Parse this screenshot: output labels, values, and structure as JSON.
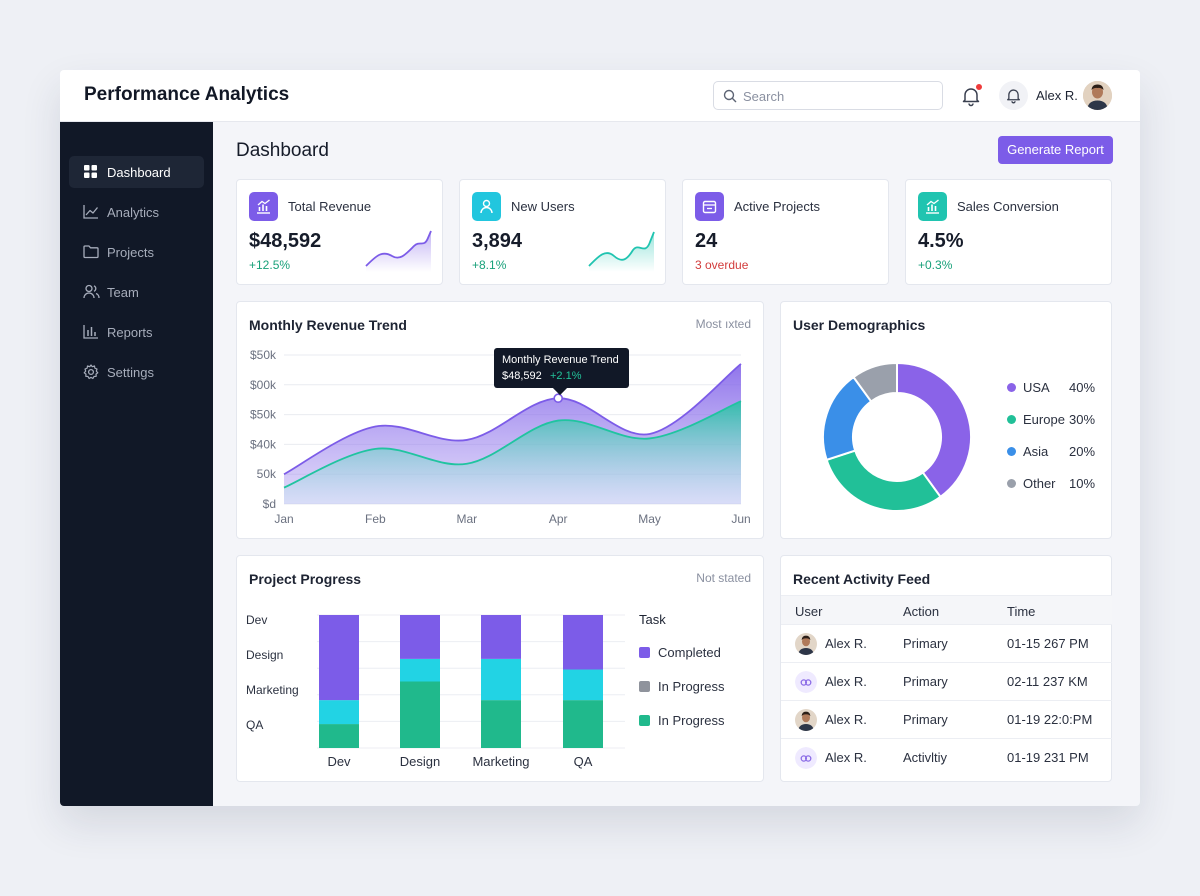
{
  "app": {
    "title": "Performance Analytics"
  },
  "header": {
    "search_placeholder": "Search",
    "user_name": "Alex R."
  },
  "sidebar": {
    "items": [
      {
        "label": "Dashboard",
        "icon": "grid-icon",
        "active": true
      },
      {
        "label": "Analytics",
        "icon": "trend-line-icon",
        "active": false
      },
      {
        "label": "Projects",
        "icon": "folder-icon",
        "active": false
      },
      {
        "label": "Team",
        "icon": "users-icon",
        "active": false
      },
      {
        "label": "Reports",
        "icon": "bar-chart-icon",
        "active": false
      },
      {
        "label": "Settings",
        "icon": "gear-icon",
        "active": false
      }
    ]
  },
  "page": {
    "title": "Dashboard",
    "generate_report_label": "Generate Report"
  },
  "stats": [
    {
      "label": "Total Revenue",
      "value": "$48,592",
      "change": "+12.5%",
      "change_type": "positive",
      "icon": "chart-icon",
      "color": "#7c5ce8"
    },
    {
      "label": "New Users",
      "value": "3,894",
      "change": "+8.1%",
      "change_type": "positive",
      "icon": "user-icon",
      "color": "#22c6de"
    },
    {
      "label": "Active Projects",
      "value": "24",
      "change": "3 overdue",
      "change_type": "negative",
      "icon": "calendar-icon",
      "color": "#7c5ce8"
    },
    {
      "label": "Sales Conversion",
      "value": "4.5%",
      "change": "+0.3%",
      "change_type": "positive",
      "icon": "chart-icon",
      "color": "#20c4b0"
    }
  ],
  "revenue_card": {
    "title": "Monthly Revenue Trend",
    "meta": "Most ıxted",
    "tooltip": {
      "title": "Monthly Revenue Trend",
      "value": "$48,592",
      "change": "+2.1%"
    }
  },
  "demographics_card": {
    "title": "User Demographics"
  },
  "progress_card": {
    "title": "Project Progress",
    "meta": "Not stated",
    "legend_title": "Task",
    "legend": [
      {
        "label": "Completed",
        "color": "#7c5ce8"
      },
      {
        "label": "In Progress",
        "color": "#8f939c"
      },
      {
        "label": "In Progress",
        "color": "#20b98c"
      }
    ]
  },
  "activity_card": {
    "title": "Recent Activity Feed",
    "columns": [
      "User",
      "Action",
      "Time"
    ],
    "rows": [
      {
        "user": "Alex R.",
        "action": "Primary",
        "time": "01-15 267 PM",
        "avatar": "photo"
      },
      {
        "user": "Alex R.",
        "action": "Primary",
        "time": "02-11 237 KM",
        "avatar": "icon"
      },
      {
        "user": "Alex R.",
        "action": "Primary",
        "time": "01-19 22:0:PM",
        "avatar": "photo"
      },
      {
        "user": "Alex R.",
        "action": "Activltiy",
        "time": "01-19 231 PM",
        "avatar": "icon"
      }
    ]
  },
  "chart_data": [
    {
      "type": "area",
      "title": "Monthly Revenue Trend",
      "categories": [
        "Jan",
        "Feb",
        "Mar",
        "Apr",
        "May",
        "Jun"
      ],
      "y_tick_labels": [
        "$d",
        "50k",
        "$40k",
        "$50k",
        "$00k",
        "$50k"
      ],
      "series": [
        {
          "values": [
            1.0,
            2.6,
            2.15,
            3.55,
            2.35,
            4.7
          ],
          "color": "#7c5ce8"
        },
        {
          "values": [
            0.55,
            1.85,
            1.35,
            2.8,
            2.2,
            3.45
          ],
          "color": "#20c4a0"
        }
      ],
      "ylim": [
        0,
        5
      ],
      "grid": true,
      "highlight": {
        "category": "Apr"
      }
    },
    {
      "type": "pie",
      "title": "User Demographics",
      "labels": [
        "USA",
        "Europe",
        "Asia",
        "Other"
      ],
      "values": [
        40,
        30,
        20,
        10
      ],
      "value_labels": [
        "40%",
        "30%",
        "20%",
        "10%"
      ],
      "colors": [
        "#8a63e8",
        "#21c098",
        "#3a8fe8",
        "#9aa0ab"
      ],
      "legend": "right"
    },
    {
      "type": "bar",
      "stacked": true,
      "title": "Project Progress",
      "categories": [
        "Dev",
        "Design",
        "Marketing",
        "QA"
      ],
      "y_category_labels": [
        "Dev",
        "Design",
        "Marketing",
        "QA"
      ],
      "series": [
        {
          "name": "In Progress",
          "values": [
            0.18,
            0.5,
            0.36,
            0.36
          ],
          "color": "#20b98c"
        },
        {
          "name": "In Progress",
          "values": [
            0.18,
            0.17,
            0.31,
            0.23
          ],
          "color": "#22d3e4"
        },
        {
          "name": "Completed",
          "values": [
            0.64,
            0.33,
            0.33,
            0.41
          ],
          "color": "#7c5ce8"
        }
      ],
      "grid": true
    }
  ]
}
